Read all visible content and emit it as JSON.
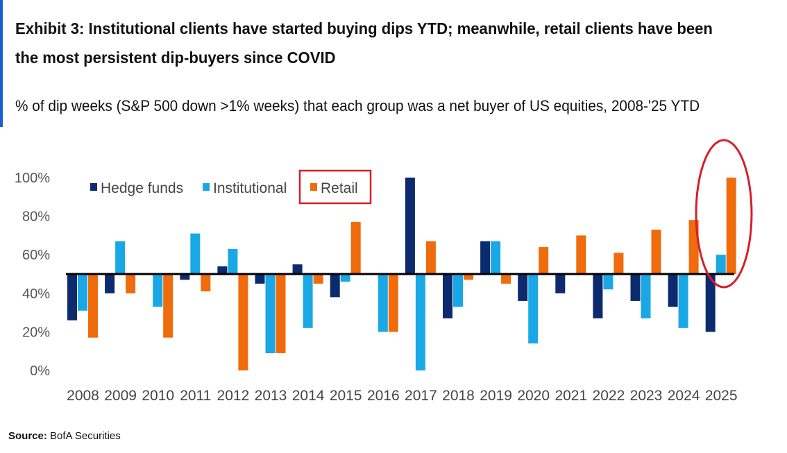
{
  "header": {
    "title": "Exhibit 3: Institutional clients have started buying dips YTD; meanwhile, retail clients have been the most persistent dip-buyers since COVID",
    "subtitle": "% of dip weeks (S&P 500 down >1% weeks) that each group was a net buyer of US equities, 2008-'25 YTD"
  },
  "source": {
    "label": "Source:",
    "text": "BofA Securities"
  },
  "colors": {
    "hedge": "#0c2a6e",
    "institutional": "#1aa7e6",
    "retail": "#ef6b0c",
    "highlight": "#d81e2a",
    "accent": "#1a5fd0"
  },
  "chart_data": {
    "type": "bar",
    "categories": [
      "2008",
      "2009",
      "2010",
      "2011",
      "2012",
      "2013",
      "2014",
      "2015",
      "2016",
      "2017",
      "2018",
      "2019",
      "2020",
      "2021",
      "2022",
      "2023",
      "2024",
      "2025"
    ],
    "baseline": 50,
    "ylim": [
      0,
      100
    ],
    "yticks": [
      0,
      20,
      40,
      60,
      80,
      100
    ],
    "ytick_labels": [
      "0%",
      "20%",
      "40%",
      "60%",
      "80%",
      "100%"
    ],
    "series": [
      {
        "name": "Hedge funds",
        "values": [
          26,
          40,
          50,
          47,
          54,
          45,
          55,
          38,
          50,
          100,
          27,
          67,
          36,
          40,
          27,
          36,
          33,
          20
        ]
      },
      {
        "name": "Institutional",
        "values": [
          31,
          67,
          33,
          71,
          63,
          9,
          22,
          46,
          20,
          0,
          33,
          67,
          14,
          50,
          42,
          27,
          22,
          60
        ]
      },
      {
        "name": "Retail",
        "values": [
          17,
          40,
          17,
          41,
          0,
          9,
          45,
          77,
          20,
          67,
          47,
          45,
          64,
          70,
          61,
          73,
          78,
          100
        ]
      }
    ],
    "legend_placement": "top-left",
    "grid": false
  }
}
